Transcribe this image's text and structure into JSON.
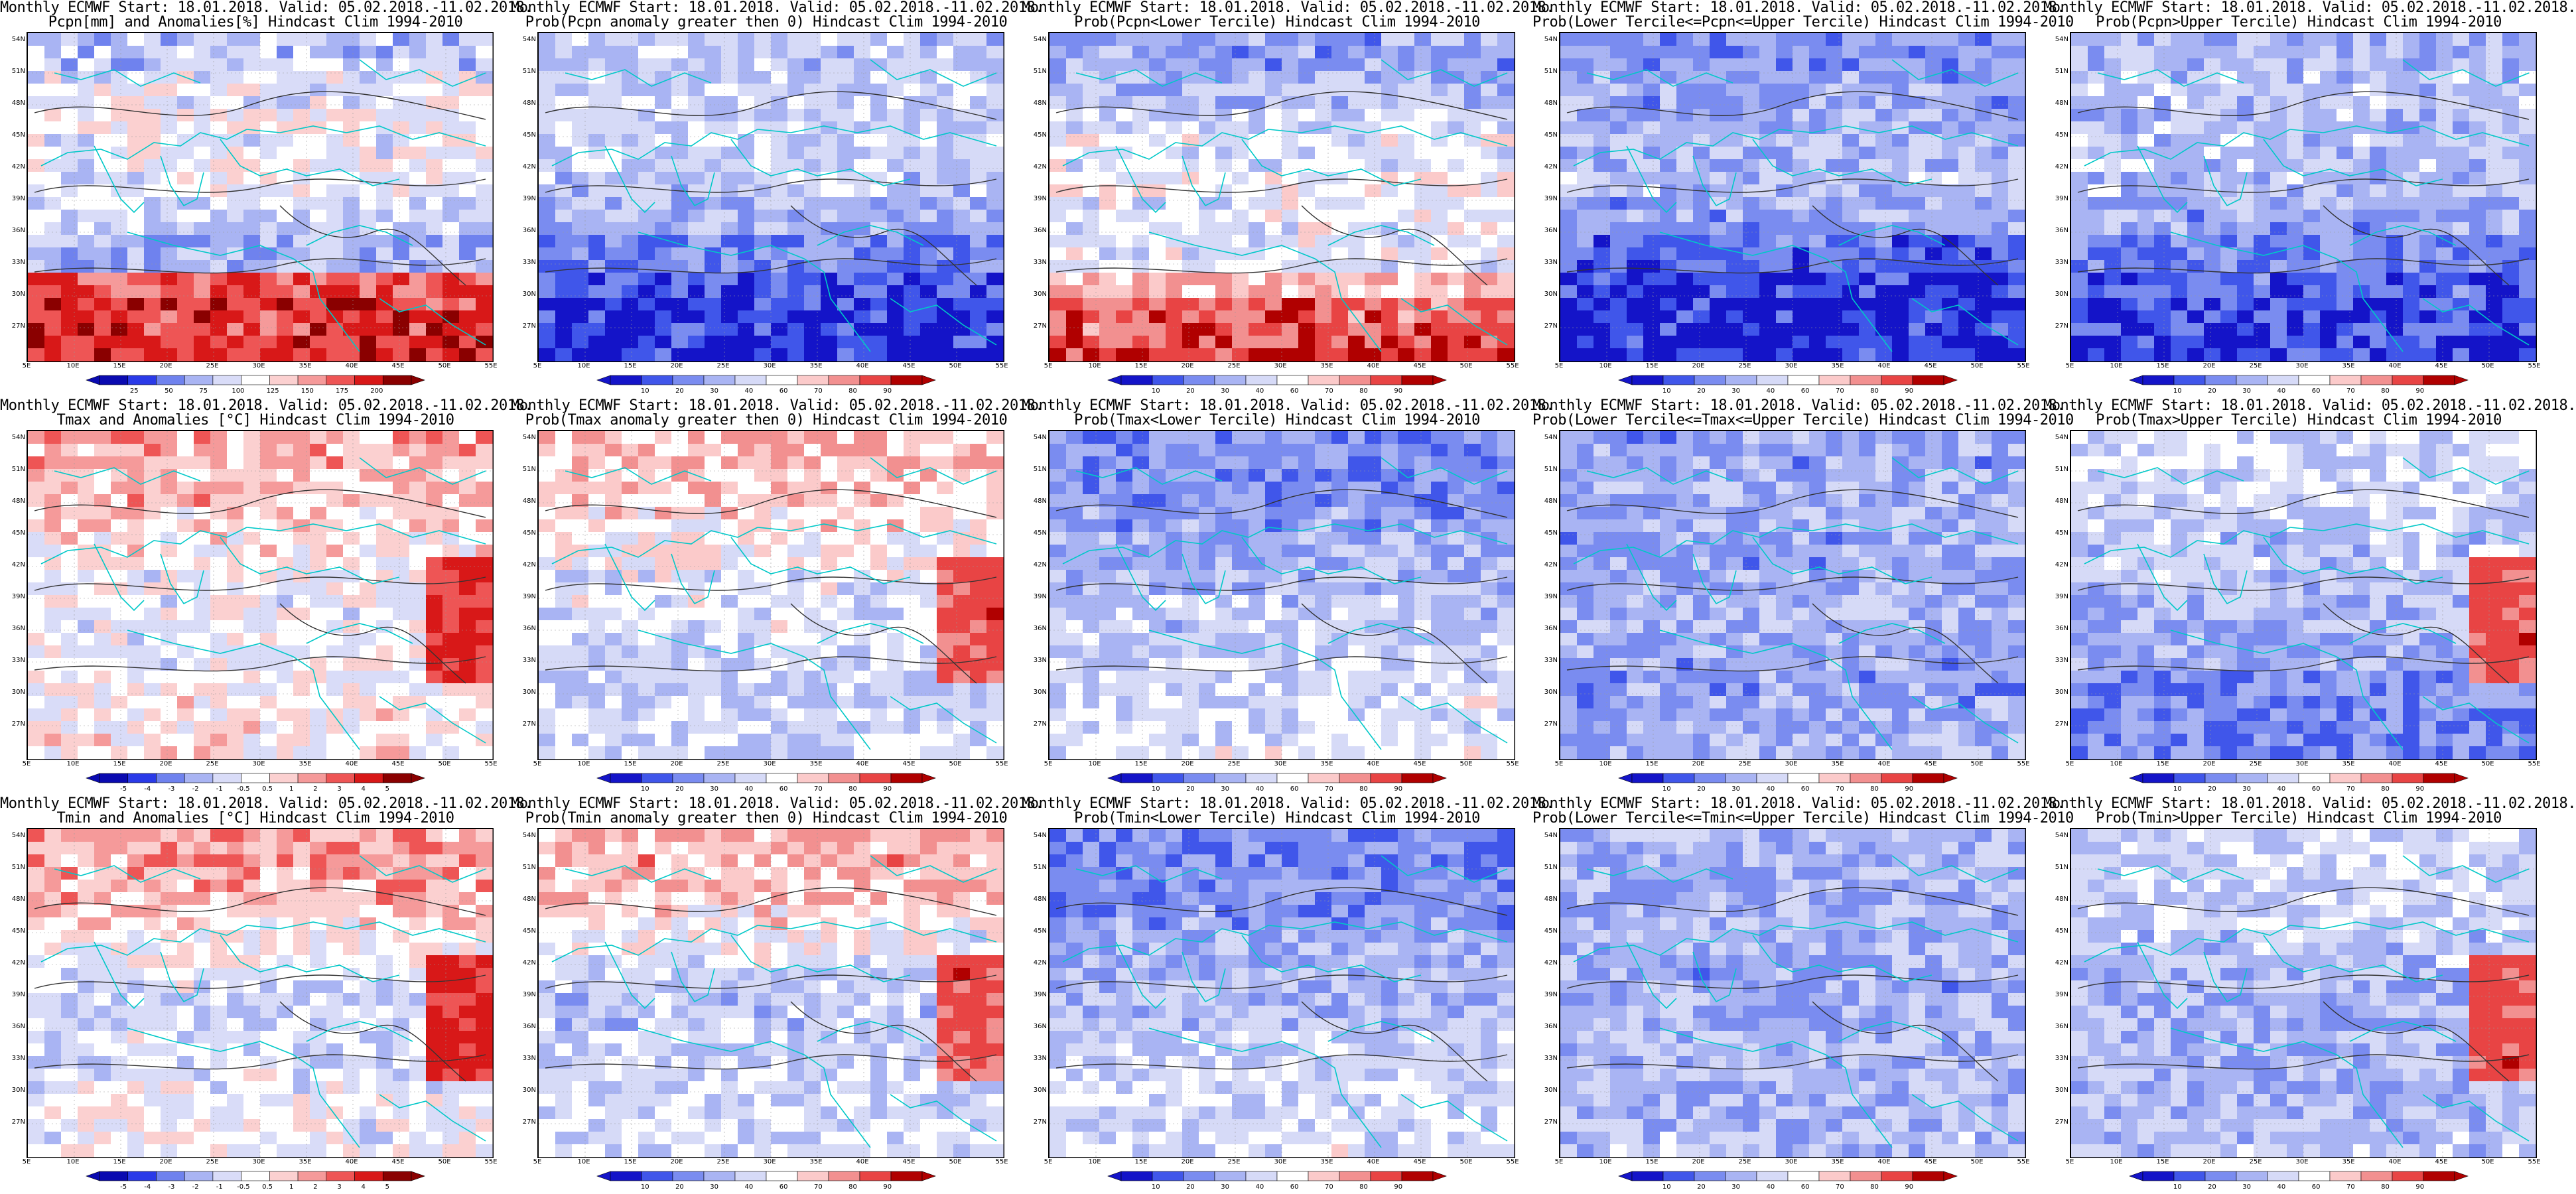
{
  "colors": {
    "scale_full": [
      "#0a0ab0",
      "#2a3ae8",
      "#6f82ee",
      "#a9b4f3",
      "#d9dcf8",
      "#ffffff",
      "#fbd0d0",
      "#f59a9a",
      "#ee5555",
      "#d81818",
      "#8a0000"
    ],
    "scale_prob": [
      "#1414c8",
      "#4056ea",
      "#7a8cf0",
      "#a9b4f3",
      "#d6daf7",
      "#ffffff",
      "#fbcaca",
      "#f29090",
      "#e84444",
      "#b00000"
    ],
    "coast": "#00c8c8",
    "contour": "#333333"
  },
  "lat_ticks": [
    "54N",
    "51N",
    "48N",
    "45N",
    "42N",
    "39N",
    "36N",
    "33N",
    "30N",
    "27N"
  ],
  "lon_ticks": [
    "5E",
    "10E",
    "15E",
    "20E",
    "25E",
    "30E",
    "35E",
    "40E",
    "45E",
    "50E",
    "55E"
  ],
  "panels": [
    {
      "id": "pcpn_anom",
      "title1": "Monthly ECMWF Start: 18.01.2018. Valid: 05.02.2018.-11.02.2018.",
      "title2": "Pcpn[mm] and Anomalies[%] Hindcast Clim 1994-2010",
      "scale": "full",
      "cbar_labels": [
        "25",
        "50",
        "75",
        "100",
        "125",
        "150",
        "175",
        "200"
      ],
      "tint": [
        0.35,
        0.45,
        0.5,
        0.48,
        0.46,
        0.4,
        0.3,
        0.2,
        0.15,
        0.1
      ],
      "south_warm": true,
      "east_warm": false
    },
    {
      "id": "pcpn_prob_gt0",
      "title1": "Monthly ECMWF Start: 18.01.2018. Valid: 05.02.2018.-11.02.2018.",
      "title2": "Prob(Pcpn anomaly greater then 0) Hindcast Clim 1994-2010",
      "scale": "prob",
      "cbar_labels": [
        "10",
        "20",
        "30",
        "40",
        "60",
        "70",
        "80",
        "90"
      ],
      "tint": [
        0.4,
        0.45,
        0.42,
        0.44,
        0.4,
        0.32,
        0.22,
        0.12,
        0.08,
        0.05
      ],
      "south_warm": false,
      "east_warm": false
    },
    {
      "id": "pcpn_prob_lower",
      "title1": "Monthly ECMWF Start: 18.01.2018. Valid: 05.02.2018.-11.02.2018.",
      "title2": "Prob(Pcpn<Lower Tercile) Hindcast Clim 1994-2010",
      "scale": "prob",
      "cbar_labels": [
        "10",
        "20",
        "30",
        "40",
        "60",
        "70",
        "80",
        "90"
      ],
      "tint": [
        0.3,
        0.35,
        0.45,
        0.5,
        0.55,
        0.5,
        0.5,
        0.7,
        0.85,
        0.9
      ],
      "south_warm": true,
      "east_warm": false
    },
    {
      "id": "pcpn_prob_normal",
      "title1": "Monthly ECMWF Start: 18.01.2018. Valid: 05.02.2018.-11.02.2018.",
      "title2": "Prob(Lower Tercile<=Pcpn<=Upper Tercile) Hindcast Clim 1994-2010",
      "scale": "prob",
      "cbar_labels": [
        "10",
        "20",
        "30",
        "40",
        "60",
        "70",
        "80",
        "90"
      ],
      "tint": [
        0.25,
        0.3,
        0.32,
        0.35,
        0.38,
        0.3,
        0.15,
        0.08,
        0.05,
        0.03
      ],
      "south_warm": false,
      "east_warm": false
    },
    {
      "id": "pcpn_prob_upper",
      "title1": "Monthly ECMWF Start: 18.01.2018. Valid: 05.02.2018.-11.02.2018.",
      "title2": "Prob(Pcpn>Upper Tercile) Hindcast Clim 1994-2010",
      "scale": "prob",
      "cbar_labels": [
        "10",
        "20",
        "30",
        "40",
        "60",
        "70",
        "80",
        "90"
      ],
      "tint": [
        0.35,
        0.4,
        0.38,
        0.4,
        0.38,
        0.3,
        0.2,
        0.15,
        0.1,
        0.08
      ],
      "south_warm": false,
      "east_warm": false
    },
    {
      "id": "tmax_anom",
      "title1": "Monthly ECMWF Start: 18.01.2018. Valid: 05.02.2018.-11.02.2018.",
      "title2": "Tmax and Anomalies [°C] Hindcast Clim 1994-2010",
      "scale": "full",
      "cbar_labels": [
        "-5",
        "-4",
        "-3",
        "-2",
        "-1",
        "-0.5",
        "0.5",
        "1",
        "2",
        "3",
        "4",
        "5"
      ],
      "tint": [
        0.65,
        0.62,
        0.58,
        0.52,
        0.48,
        0.46,
        0.48,
        0.5,
        0.52,
        0.55
      ],
      "south_warm": false,
      "east_warm": true
    },
    {
      "id": "tmax_prob_gt0",
      "title1": "Monthly ECMWF Start: 18.01.2018. Valid: 05.02.2018.-11.02.2018.",
      "title2": "Prob(Tmax anomaly greater then 0) Hindcast Clim 1994-2010",
      "scale": "prob",
      "cbar_labels": [
        "10",
        "20",
        "30",
        "40",
        "60",
        "70",
        "80",
        "90"
      ],
      "tint": [
        0.68,
        0.64,
        0.6,
        0.55,
        0.5,
        0.48,
        0.45,
        0.42,
        0.44,
        0.46
      ],
      "south_warm": false,
      "east_warm": true
    },
    {
      "id": "tmax_prob_lower",
      "title1": "Monthly ECMWF Start: 18.01.2018. Valid: 05.02.2018.-11.02.2018.",
      "title2": "Prob(Tmax<Lower Tercile) Hindcast Clim 1994-2010",
      "scale": "prob",
      "cbar_labels": [
        "10",
        "20",
        "30",
        "40",
        "60",
        "70",
        "80",
        "90"
      ],
      "tint": [
        0.25,
        0.25,
        0.28,
        0.32,
        0.35,
        0.4,
        0.42,
        0.45,
        0.48,
        0.5
      ],
      "south_warm": false,
      "east_warm": false
    },
    {
      "id": "tmax_prob_normal",
      "title1": "Monthly ECMWF Start: 18.01.2018. Valid: 05.02.2018.-11.02.2018.",
      "title2": "Prob(Lower Tercile<=Tmax<=Upper Tercile) Hindcast Clim 1994-2010",
      "scale": "prob",
      "cbar_labels": [
        "10",
        "20",
        "30",
        "40",
        "60",
        "70",
        "80",
        "90"
      ],
      "tint": [
        0.3,
        0.32,
        0.34,
        0.3,
        0.32,
        0.35,
        0.3,
        0.28,
        0.3,
        0.32
      ],
      "south_warm": false,
      "east_warm": false
    },
    {
      "id": "tmax_prob_upper",
      "title1": "Monthly ECMWF Start: 18.01.2018. Valid: 05.02.2018.-11.02.2018.",
      "title2": "Prob(Tmax>Upper Tercile) Hindcast Clim 1994-2010",
      "scale": "prob",
      "cbar_labels": [
        "10",
        "20",
        "30",
        "40",
        "60",
        "70",
        "80",
        "90"
      ],
      "tint": [
        0.45,
        0.45,
        0.42,
        0.4,
        0.38,
        0.35,
        0.32,
        0.25,
        0.22,
        0.22
      ],
      "south_warm": false,
      "east_warm": true
    },
    {
      "id": "tmin_anom",
      "title1": "Monthly ECMWF Start: 18.01.2018. Valid: 05.02.2018.-11.02.2018.",
      "title2": "Tmin and Anomalies [°C] Hindcast Clim 1994-2010",
      "scale": "full",
      "cbar_labels": [
        "-5",
        "-4",
        "-3",
        "-2",
        "-1",
        "-0.5",
        "0.5",
        "1",
        "2",
        "3",
        "4",
        "5"
      ],
      "tint": [
        0.66,
        0.64,
        0.58,
        0.5,
        0.42,
        0.4,
        0.42,
        0.45,
        0.48,
        0.48
      ],
      "south_warm": false,
      "east_warm": true
    },
    {
      "id": "tmin_prob_gt0",
      "title1": "Monthly ECMWF Start: 18.01.2018. Valid: 05.02.2018.-11.02.2018.",
      "title2": "Prob(Tmin anomaly greater then 0) Hindcast Clim 1994-2010",
      "scale": "prob",
      "cbar_labels": [
        "10",
        "20",
        "30",
        "40",
        "60",
        "70",
        "80",
        "90"
      ],
      "tint": [
        0.7,
        0.66,
        0.6,
        0.52,
        0.42,
        0.4,
        0.42,
        0.44,
        0.46,
        0.46
      ],
      "south_warm": false,
      "east_warm": true
    },
    {
      "id": "tmin_prob_lower",
      "title1": "Monthly ECMWF Start: 18.01.2018. Valid: 05.02.2018.-11.02.2018.",
      "title2": "Prob(Tmin<Lower Tercile) Hindcast Clim 1994-2010",
      "scale": "prob",
      "cbar_labels": [
        "10",
        "20",
        "30",
        "40",
        "60",
        "70",
        "80",
        "90"
      ],
      "tint": [
        0.22,
        0.24,
        0.28,
        0.32,
        0.34,
        0.36,
        0.42,
        0.46,
        0.46,
        0.48
      ],
      "south_warm": false,
      "east_warm": false
    },
    {
      "id": "tmin_prob_normal",
      "title1": "Monthly ECMWF Start: 18.01.2018. Valid: 05.02.2018.-11.02.2018.",
      "title2": "Prob(Lower Tercile<=Tmin<=Upper Tercile) Hindcast Clim 1994-2010",
      "scale": "prob",
      "cbar_labels": [
        "10",
        "20",
        "30",
        "40",
        "60",
        "70",
        "80",
        "90"
      ],
      "tint": [
        0.34,
        0.32,
        0.32,
        0.34,
        0.3,
        0.32,
        0.36,
        0.34,
        0.36,
        0.38
      ],
      "south_warm": false,
      "east_warm": false
    },
    {
      "id": "tmin_prob_upper",
      "title1": "Monthly ECMWF Start: 18.01.2018. Valid: 05.02.2018.-11.02.2018.",
      "title2": "Prob(Tmin>Upper Tercile) Hindcast Clim 1994-2010",
      "scale": "prob",
      "cbar_labels": [
        "10",
        "20",
        "30",
        "40",
        "60",
        "70",
        "80",
        "90"
      ],
      "tint": [
        0.45,
        0.44,
        0.42,
        0.4,
        0.36,
        0.32,
        0.35,
        0.34,
        0.36,
        0.4
      ],
      "south_warm": false,
      "east_warm": true
    }
  ]
}
